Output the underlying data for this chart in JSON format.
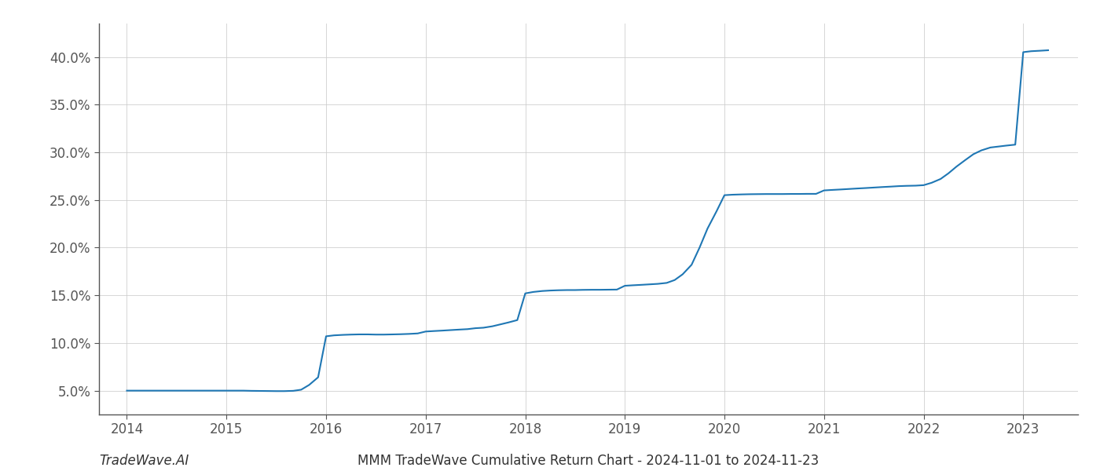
{
  "x_values": [
    2014.0,
    2014.08,
    2014.17,
    2014.25,
    2014.33,
    2014.42,
    2014.5,
    2014.58,
    2014.67,
    2014.75,
    2014.83,
    2014.92,
    2015.0,
    2015.08,
    2015.17,
    2015.25,
    2015.33,
    2015.42,
    2015.5,
    2015.58,
    2015.67,
    2015.75,
    2015.83,
    2015.92,
    2016.0,
    2016.08,
    2016.17,
    2016.25,
    2016.33,
    2016.42,
    2016.5,
    2016.58,
    2016.67,
    2016.75,
    2016.83,
    2016.92,
    2017.0,
    2017.08,
    2017.17,
    2017.25,
    2017.33,
    2017.42,
    2017.5,
    2017.58,
    2017.67,
    2017.75,
    2017.83,
    2017.92,
    2018.0,
    2018.08,
    2018.17,
    2018.25,
    2018.33,
    2018.42,
    2018.5,
    2018.58,
    2018.67,
    2018.75,
    2018.83,
    2018.92,
    2019.0,
    2019.08,
    2019.17,
    2019.25,
    2019.33,
    2019.42,
    2019.5,
    2019.58,
    2019.67,
    2019.75,
    2019.83,
    2019.92,
    2020.0,
    2020.08,
    2020.17,
    2020.25,
    2020.33,
    2020.42,
    2020.5,
    2020.58,
    2020.67,
    2020.75,
    2020.83,
    2020.92,
    2021.0,
    2021.08,
    2021.17,
    2021.25,
    2021.33,
    2021.42,
    2021.5,
    2021.58,
    2021.67,
    2021.75,
    2021.83,
    2021.92,
    2022.0,
    2022.08,
    2022.17,
    2022.25,
    2022.33,
    2022.42,
    2022.5,
    2022.58,
    2022.67,
    2022.75,
    2022.83,
    2022.92,
    2023.0,
    2023.08,
    2023.17,
    2023.25
  ],
  "y_values": [
    0.05,
    0.05,
    0.05,
    0.05,
    0.05,
    0.05,
    0.05,
    0.05,
    0.05,
    0.05,
    0.05,
    0.05,
    0.05,
    0.05,
    0.05,
    0.0498,
    0.0497,
    0.0496,
    0.0495,
    0.0495,
    0.0498,
    0.051,
    0.056,
    0.064,
    0.107,
    0.108,
    0.1085,
    0.1088,
    0.109,
    0.109,
    0.1088,
    0.1088,
    0.109,
    0.1092,
    0.1095,
    0.11,
    0.112,
    0.1125,
    0.113,
    0.1135,
    0.114,
    0.1145,
    0.1155,
    0.116,
    0.1175,
    0.1195,
    0.1215,
    0.124,
    0.152,
    0.1535,
    0.1545,
    0.155,
    0.1553,
    0.1555,
    0.1555,
    0.1557,
    0.1558,
    0.1558,
    0.1559,
    0.156,
    0.16,
    0.1605,
    0.161,
    0.1615,
    0.162,
    0.163,
    0.166,
    0.172,
    0.182,
    0.2,
    0.22,
    0.238,
    0.255,
    0.2555,
    0.2558,
    0.256,
    0.2561,
    0.2562,
    0.2562,
    0.2562,
    0.2563,
    0.2563,
    0.2564,
    0.2564,
    0.26,
    0.2605,
    0.261,
    0.2615,
    0.262,
    0.2625,
    0.263,
    0.2635,
    0.264,
    0.2645,
    0.2648,
    0.265,
    0.2655,
    0.268,
    0.272,
    0.278,
    0.285,
    0.292,
    0.298,
    0.302,
    0.305,
    0.306,
    0.307,
    0.308,
    0.405,
    0.406,
    0.4065,
    0.407
  ],
  "line_color": "#1f77b4",
  "line_width": 1.5,
  "title": "MMM TradeWave Cumulative Return Chart - 2024-11-01 to 2024-11-23",
  "watermark": "TradeWave.AI",
  "x_ticks": [
    2014,
    2015,
    2016,
    2017,
    2018,
    2019,
    2020,
    2021,
    2022,
    2023
  ],
  "x_tick_labels": [
    "2014",
    "2015",
    "2016",
    "2017",
    "2018",
    "2019",
    "2020",
    "2021",
    "2022",
    "2023"
  ],
  "y_ticks": [
    0.05,
    0.1,
    0.15,
    0.2,
    0.25,
    0.3,
    0.35,
    0.4
  ],
  "y_tick_labels": [
    "5.0%",
    "10.0%",
    "15.0%",
    "20.0%",
    "25.0%",
    "30.0%",
    "35.0%",
    "40.0%"
  ],
  "xlim": [
    2013.72,
    2023.55
  ],
  "ylim": [
    0.025,
    0.435
  ],
  "background_color": "#ffffff",
  "grid_color": "#cccccc",
  "grid_alpha": 0.8,
  "tick_fontsize": 12,
  "title_fontsize": 12,
  "watermark_fontsize": 12
}
